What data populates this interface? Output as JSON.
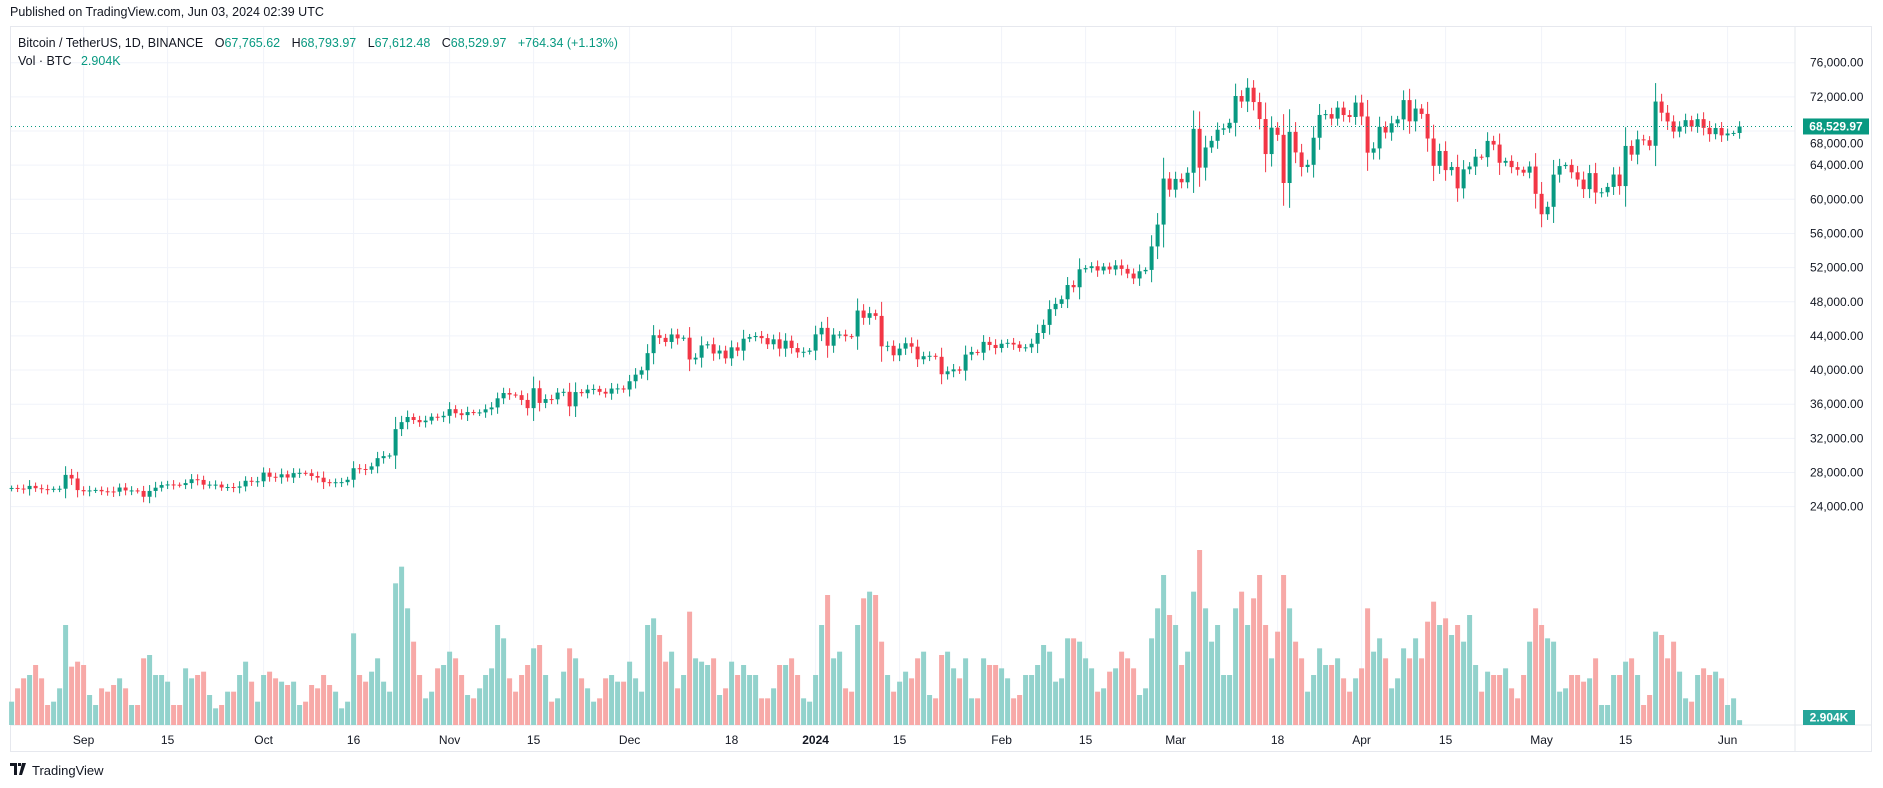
{
  "published": "Published on TradingView.com, Jun 03, 2024 02:39 UTC",
  "legend": {
    "symbol": "Bitcoin / TetherUS, 1D, BINANCE",
    "open_label": "O",
    "open": "67,765.62",
    "high_label": "H",
    "high": "68,793.97",
    "low_label": "L",
    "low": "67,612.48",
    "close_label": "C",
    "close": "68,529.97",
    "change": "+764.34 (+1.13%)",
    "vol_label": "Vol · BTC",
    "vol_value": "2.904K"
  },
  "footer": {
    "brand": "TradingView",
    "logo_mark": "TV"
  },
  "colors": {
    "up": "#089981",
    "down": "#f23645",
    "vol_up": "#92d2cc",
    "vol_down": "#f7a9a7",
    "grid": "#f0f3fa"
  },
  "chart_data": {
    "type": "candlestick",
    "title": "Bitcoin / TetherUS, 1D, BINANCE",
    "start_date": "2023-08-20",
    "first_open": 26.1,
    "price_unit": "thousand USDT",
    "closes": [
      26.19,
      26.12,
      26.05,
      26.43,
      26.16,
      26.05,
      26.0,
      26.09,
      26.1,
      27.72,
      27.3,
      25.94,
      25.8,
      25.9,
      25.96,
      25.8,
      25.78,
      25.75,
      26.24,
      25.9,
      25.9,
      25.84,
      25.16,
      25.84,
      26.22,
      26.53,
      26.6,
      26.57,
      26.53,
      26.76,
      27.21,
      27.13,
      26.57,
      26.58,
      26.58,
      26.25,
      26.3,
      26.22,
      26.37,
      27.03,
      26.91,
      26.97,
      27.99,
      27.5,
      27.43,
      27.79,
      27.41,
      27.93,
      27.96,
      27.92,
      27.59,
      27.39,
      26.87,
      26.75,
      26.86,
      26.87,
      27.15,
      28.5,
      28.41,
      28.33,
      28.72,
      29.68,
      29.92,
      29.99,
      33.08,
      33.9,
      34.5,
      34.15,
      33.89,
      34.08,
      34.53,
      34.47,
      34.64,
      35.42,
      34.94,
      34.72,
      35.08,
      35.01,
      35.04,
      35.4,
      35.62,
      36.69,
      37.31,
      37.13,
      37.06,
      36.5,
      35.54,
      37.87,
      36.15,
      36.6,
      36.57,
      37.36,
      37.45,
      35.75,
      37.42,
      37.29,
      37.72,
      37.79,
      37.45,
      37.24,
      37.83,
      37.85,
      37.72,
      38.69,
      39.46,
      39.97,
      41.98,
      44.08,
      43.77,
      43.29,
      44.17,
      43.71,
      43.79,
      41.24,
      41.45,
      42.89,
      43.02,
      41.94,
      42.28,
      41.37,
      42.66,
      42.27,
      43.67,
      43.86,
      43.99,
      43.74,
      43.02,
      43.6,
      42.51,
      43.44,
      42.58,
      42.07,
      42.14,
      42.28,
      44.18,
      44.94,
      42.85,
      44.15,
      44.16,
      43.97,
      43.93,
      46.97,
      46.12,
      46.66,
      46.34,
      42.78,
      42.84,
      41.73,
      42.51,
      43.14,
      42.74,
      41.26,
      41.62,
      41.67,
      41.55,
      39.51,
      39.85,
      40.08,
      39.93,
      41.81,
      42.12,
      42.03,
      43.3,
      42.94,
      42.58,
      43.08,
      43.19,
      42.99,
      42.58,
      42.66,
      43.08,
      44.34,
      45.29,
      47.13,
      47.75,
      48.29,
      49.96,
      49.7,
      51.8,
      51.94,
      52.16,
      51.66,
      52.12,
      51.78,
      52.26,
      51.85,
      51.3,
      50.73,
      51.57,
      51.73,
      54.48,
      57.04,
      62.43,
      61.13,
      62.39,
      61.99,
      63.11,
      68.25,
      63.71,
      66.07,
      66.85,
      68.15,
      68.31,
      68.96,
      72.1,
      71.45,
      73.07,
      71.39,
      69.4,
      65.3,
      68.39,
      67.55,
      61.91,
      67.9,
      65.49,
      63.78,
      64.04,
      67.21,
      69.88,
      69.98,
      69.45,
      70.74,
      69.87,
      69.64,
      71.33,
      69.7,
      65.46,
      65.96,
      68.49,
      67.82,
      68.9,
      69.36,
      71.62,
      69.13,
      70.63,
      70.0,
      67.12,
      63.92,
      65.66,
      63.42,
      63.79,
      61.28,
      63.51,
      63.84,
      64.99,
      64.93,
      66.84,
      66.41,
      64.28,
      64.5,
      63.77,
      63.46,
      63.12,
      63.84,
      60.64,
      58.25,
      59.12,
      62.89,
      63.89,
      64.03,
      63.16,
      62.31,
      61.19,
      63.07,
      60.79,
      60.82,
      61.45,
      62.9,
      61.55,
      66.25,
      65.23,
      67.02,
      66.92,
      66.27,
      71.45,
      70.14,
      69.12,
      67.93,
      68.53,
      69.27,
      68.51,
      69.39,
      68.37,
      67.63,
      68.35,
      67.49,
      67.71,
      67.77,
      68.53
    ],
    "volumes_k": [
      14,
      22,
      28,
      30,
      36,
      28,
      12,
      14,
      22,
      60,
      35,
      38,
      36,
      18,
      12,
      22,
      20,
      24,
      28,
      22,
      12,
      12,
      40,
      42,
      30,
      30,
      26,
      12,
      12,
      34,
      28,
      30,
      32,
      18,
      10,
      12,
      20,
      20,
      30,
      38,
      26,
      14,
      30,
      32,
      28,
      26,
      24,
      26,
      12,
      14,
      24,
      22,
      30,
      24,
      20,
      10,
      14,
      55,
      30,
      26,
      32,
      40,
      26,
      20,
      85,
      95,
      70,
      50,
      30,
      16,
      20,
      34,
      36,
      44,
      40,
      30,
      18,
      16,
      22,
      30,
      34,
      60,
      52,
      28,
      20,
      30,
      36,
      46,
      48,
      30,
      14,
      16,
      32,
      46,
      40,
      28,
      22,
      14,
      16,
      28,
      30,
      26,
      26,
      38,
      28,
      20,
      60,
      64,
      54,
      38,
      44,
      22,
      30,
      68,
      40,
      38,
      36,
      40,
      18,
      22,
      38,
      30,
      36,
      30,
      30,
      16,
      16,
      22,
      36,
      36,
      40,
      30,
      16,
      14,
      30,
      60,
      78,
      40,
      44,
      22,
      20,
      60,
      76,
      80,
      78,
      50,
      30,
      20,
      26,
      32,
      28,
      40,
      44,
      18,
      16,
      42,
      44,
      34,
      28,
      40,
      16,
      16,
      40,
      36,
      36,
      34,
      28,
      16,
      18,
      30,
      30,
      36,
      48,
      44,
      26,
      28,
      52,
      52,
      50,
      40,
      34,
      20,
      22,
      32,
      34,
      44,
      40,
      34,
      18,
      22,
      52,
      70,
      90,
      66,
      60,
      36,
      44,
      80,
      105,
      70,
      50,
      60,
      30,
      30,
      70,
      80,
      60,
      76,
      90,
      60,
      40,
      56,
      90,
      70,
      50,
      40,
      20,
      30,
      46,
      36,
      36,
      40,
      28,
      20,
      28,
      34,
      70,
      44,
      52,
      40,
      22,
      28,
      46,
      40,
      52,
      40,
      62,
      74,
      60,
      64,
      54,
      60,
      50,
      66,
      36,
      20,
      32,
      30,
      30,
      34,
      22,
      16,
      30,
      50,
      70,
      60,
      52,
      50,
      20,
      22,
      30,
      30,
      26,
      28,
      40,
      12,
      12,
      30,
      30,
      38,
      40,
      30,
      12,
      18,
      56,
      54,
      40,
      50,
      32,
      16,
      14,
      30,
      34,
      30,
      32,
      28,
      12,
      16,
      2.904
    ],
    "last_price": 68529.97,
    "last_price_label": "68,529.97",
    "last_volume_label": "2.904K",
    "y_ticks": [
      76000,
      72000,
      68000,
      64000,
      60000,
      56000,
      52000,
      48000,
      44000,
      40000,
      36000,
      32000,
      28000,
      24000
    ],
    "y_tick_labels": [
      "76,000.00",
      "72,000.00",
      "68,000.00",
      "64,000.00",
      "60,000.00",
      "56,000.00",
      "52,000.00",
      "48,000.00",
      "44,000.00",
      "40,000.00",
      "36,000.00",
      "32,000.00",
      "28,000.00",
      "24,000.00"
    ],
    "x_ticks": [
      {
        "date": "2023-09-01",
        "label": "Sep"
      },
      {
        "date": "2023-09-15",
        "label": "15"
      },
      {
        "date": "2023-10-01",
        "label": "Oct"
      },
      {
        "date": "2023-10-16",
        "label": "16"
      },
      {
        "date": "2023-11-01",
        "label": "Nov"
      },
      {
        "date": "2023-11-15",
        "label": "15"
      },
      {
        "date": "2023-12-01",
        "label": "Dec"
      },
      {
        "date": "2023-12-18",
        "label": "18"
      },
      {
        "date": "2024-01-01",
        "label": "2024"
      },
      {
        "date": "2024-01-15",
        "label": "15"
      },
      {
        "date": "2024-02-01",
        "label": "Feb"
      },
      {
        "date": "2024-02-15",
        "label": "15"
      },
      {
        "date": "2024-03-01",
        "label": "Mar"
      },
      {
        "date": "2024-03-18",
        "label": "18"
      },
      {
        "date": "2024-04-01",
        "label": "Apr"
      },
      {
        "date": "2024-04-15",
        "label": "15"
      },
      {
        "date": "2024-05-01",
        "label": "May"
      },
      {
        "date": "2024-05-15",
        "label": "15"
      },
      {
        "date": "2024-06-01",
        "label": "Jun"
      }
    ]
  }
}
